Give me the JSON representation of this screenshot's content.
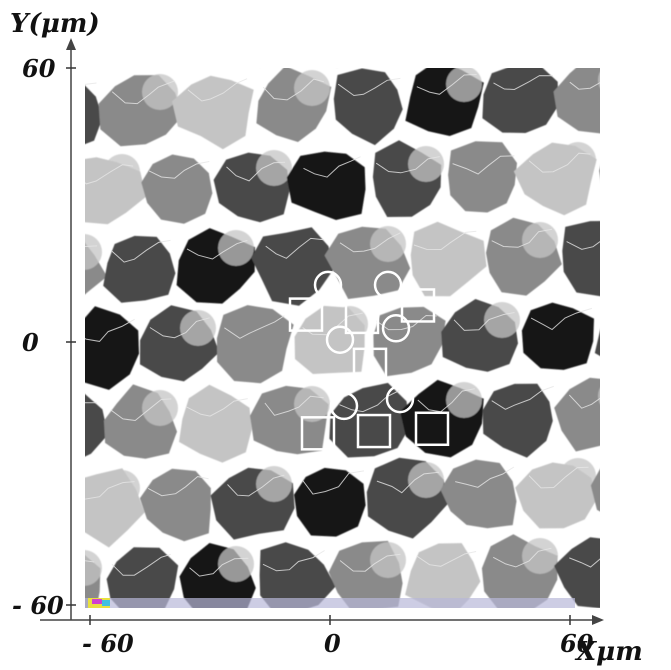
{
  "figure": {
    "y_axis_label": "Y(μm)",
    "x_axis_label": "Xμm",
    "y_ticks": [
      {
        "value": 60,
        "label": "60"
      },
      {
        "value": 0,
        "label": "0"
      },
      {
        "value": -60,
        "label": "- 60"
      }
    ],
    "x_ticks": [
      {
        "value": -60,
        "label": "- 60"
      },
      {
        "value": 0,
        "label": "0"
      },
      {
        "value": 60,
        "label": "60"
      }
    ],
    "range_um": [
      -60,
      60
    ],
    "colors": {
      "black": "#141414",
      "dark_gray": "#4a4a4a",
      "mid_gray": "#8a8a8a",
      "light_gray": "#c4c4c4",
      "white": "#ffffff",
      "marker": "#ffffff",
      "axis": "#333333"
    },
    "markers": {
      "circles": [
        {
          "x": -0.5,
          "y": 12.5
        },
        {
          "x": 14.5,
          "y": 12.5
        },
        {
          "x": 2.5,
          "y": 0.5
        },
        {
          "x": 16.5,
          "y": 3
        },
        {
          "x": 3.5,
          "y": -14
        },
        {
          "x": 17.5,
          "y": -12.5
        }
      ],
      "squares": [
        {
          "x": -6,
          "y": 6
        },
        {
          "x": 8,
          "y": 5.5
        },
        {
          "x": 22,
          "y": 8
        },
        {
          "x": 10,
          "y": -5
        },
        {
          "x": -3,
          "y": -20
        },
        {
          "x": 11,
          "y": -19.5
        },
        {
          "x": 25.5,
          "y": -19
        }
      ]
    }
  }
}
